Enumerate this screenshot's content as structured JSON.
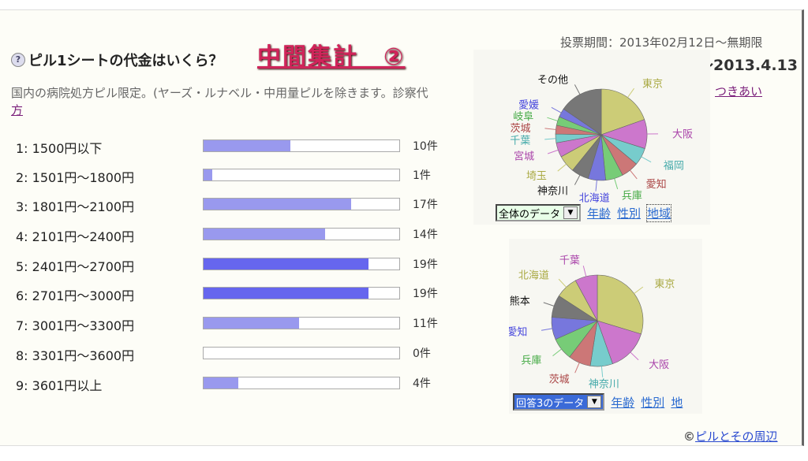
{
  "question": {
    "title": "ピル1シートの代金はいくら？",
    "badge": "中間集計　②",
    "description": "国内の病院処方ピル限定。(ヤーズ・ルナベル・中用量ピルを除きます。診察代",
    "description_link": "方"
  },
  "period": {
    "label": "投票期間：2013年02月12日～無期限",
    "end_date": "～2013.4.13"
  },
  "assoc_link": "つきあい",
  "results": [
    {
      "label": "1: 1500円以下",
      "count": 10,
      "count_label": "10件"
    },
    {
      "label": "2: 1501円～1800円",
      "count": 1,
      "count_label": "1件"
    },
    {
      "label": "3: 1801円～2100円",
      "count": 17,
      "count_label": "17件"
    },
    {
      "label": "4: 2101円～2400円",
      "count": 14,
      "count_label": "14件"
    },
    {
      "label": "5: 2401円～2700円",
      "count": 19,
      "count_label": "19件"
    },
    {
      "label": "6: 2701円～3000円",
      "count": 19,
      "count_label": "19件"
    },
    {
      "label": "7: 3001円～3300円",
      "count": 11,
      "count_label": "11件"
    },
    {
      "label": "8: 3301円～3600円",
      "count": 0,
      "count_label": "0件"
    },
    {
      "label": "9: 3601円以上",
      "count": 4,
      "count_label": "4件"
    }
  ],
  "chart_data": [
    {
      "type": "pie",
      "title": "全体のデータ 地域",
      "labels": [
        "東京",
        "大阪",
        "福岡",
        "愛知",
        "兵庫",
        "北海道",
        "神奈川",
        "埼玉",
        "宮城",
        "千葉",
        "茨城",
        "岐阜",
        "愛媛",
        "その他"
      ],
      "values": [
        19,
        10,
        6,
        6,
        6,
        6,
        6,
        6,
        5,
        3,
        3,
        3,
        3,
        15
      ],
      "colors": [
        "#cccc77",
        "#cc77cc",
        "#77cccc",
        "#cc7777",
        "#77cc77",
        "#7777dd",
        "#777777",
        "#cccc77",
        "#cc77cc",
        "#77cccc",
        "#cc7777",
        "#77cc77",
        "#7777dd",
        "#777777"
      ]
    },
    {
      "type": "pie",
      "title": "回答3のデータ 地域",
      "labels": [
        "東京",
        "大阪",
        "神奈川",
        "茨城",
        "兵庫",
        "愛知",
        "熊本",
        "北海道",
        "千葉"
      ],
      "values": [
        30,
        15,
        8,
        8,
        8,
        8,
        8,
        8,
        8
      ],
      "colors": [
        "#cccc77",
        "#cc77cc",
        "#77cccc",
        "#cc7777",
        "#77cc77",
        "#7777dd",
        "#777777",
        "#cccc77",
        "#cc77cc"
      ]
    }
  ],
  "controls": [
    {
      "select": "全体のデータ",
      "links": [
        "年齢",
        "性別",
        "地域"
      ]
    },
    {
      "select": "回答3のデータ",
      "links": [
        "年齢",
        "性別",
        "地"
      ]
    }
  ],
  "credit": {
    "prefix": "©",
    "link": "ピルとその周辺"
  }
}
